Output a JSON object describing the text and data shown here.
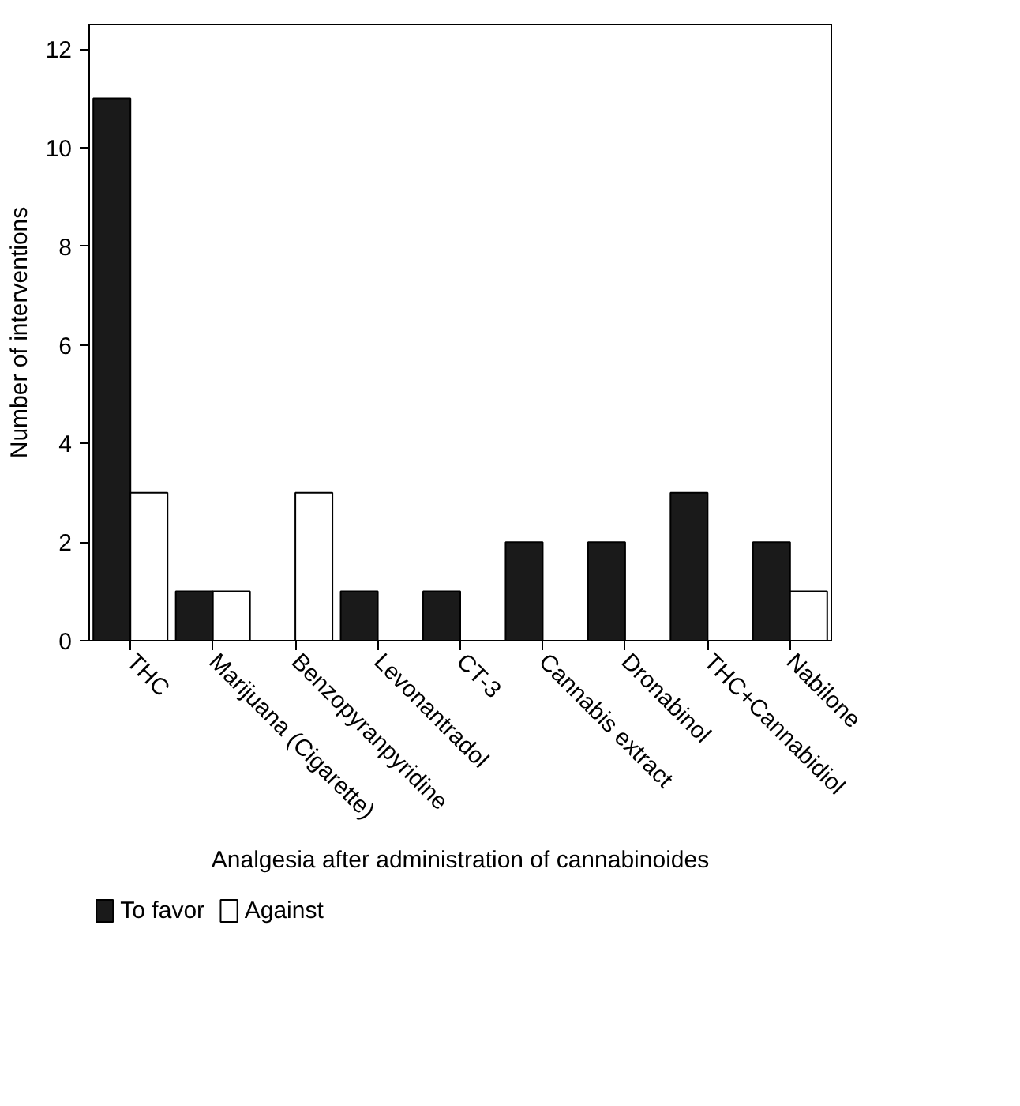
{
  "chart_data": {
    "type": "bar",
    "xlabel": "Analgesia after administration of cannabinoides",
    "ylabel": "Number of interventions",
    "categories": [
      "THC",
      "Marijuana (Cigarette)",
      "Benzopyranpyridine",
      "Levonantradol",
      "CT-3",
      "Cannabis extract",
      "Dronabinol",
      "THC+Cannabidiol",
      "Nabilone"
    ],
    "series": [
      {
        "name": "To favor",
        "color": "#1a1a1a",
        "values": [
          11,
          1,
          0,
          1,
          1,
          2,
          2,
          3,
          2
        ]
      },
      {
        "name": "Against",
        "color": "#ffffff",
        "values": [
          3,
          1,
          3,
          0,
          0,
          0,
          0,
          0,
          1
        ]
      }
    ],
    "ylim": [
      0,
      12.5
    ],
    "yticks": [
      0,
      2,
      4,
      6,
      8,
      10,
      12
    ],
    "grid": false,
    "legend": "bottom"
  }
}
